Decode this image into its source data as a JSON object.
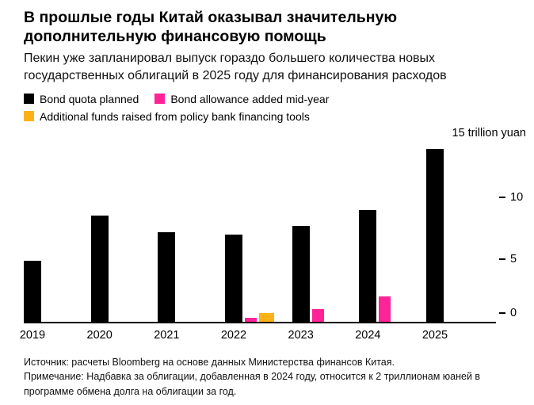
{
  "chart_data": {
    "type": "bar",
    "title": "В прошлые годы Китай оказывал значительную дополнительную финансовую помощь",
    "subtitle": "Пекин уже запланировал выпуск гораздо большего количества новых государственных облигаций в 2025 году для финансирования расходов",
    "categories": [
      "2019",
      "2020",
      "2021",
      "2022",
      "2023",
      "2024",
      "2025"
    ],
    "series": [
      {
        "name": "Bond quota planned",
        "color": "#000000",
        "values": [
          4.9,
          8.5,
          7.2,
          7.0,
          7.7,
          9.0,
          13.9
        ]
      },
      {
        "name": "Bond allowance added mid-year",
        "color": "#ff2397",
        "values": [
          null,
          null,
          null,
          0.3,
          1.0,
          2.0,
          null
        ]
      },
      {
        "name": "Additional funds raised from policy bank financing tools",
        "color": "#fcb216",
        "values": [
          null,
          null,
          null,
          0.7,
          null,
          null,
          null
        ]
      }
    ],
    "ylim": [
      0,
      15
    ],
    "yticks": [
      0,
      5,
      10
    ],
    "ytop_label": "15 trillion yuan",
    "xlabel": "",
    "ylabel": "trillion yuan",
    "legend_position": "top",
    "grid": false
  },
  "footer": {
    "source": "Источник: расчеты Bloomberg на основе данных Министерства финансов Китая.",
    "note": "Примечание: Надбавка за облигации, добавленная в 2024 году, относится к 2 триллионам юаней в программе обмена долга на облигации за год."
  }
}
